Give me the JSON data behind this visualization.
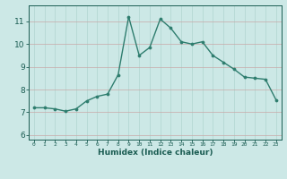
{
  "x": [
    0,
    1,
    2,
    3,
    4,
    5,
    6,
    7,
    8,
    9,
    10,
    11,
    12,
    13,
    14,
    15,
    16,
    17,
    18,
    19,
    20,
    21,
    22,
    23
  ],
  "y": [
    7.2,
    7.2,
    7.15,
    7.05,
    7.15,
    7.5,
    7.7,
    7.8,
    8.65,
    11.2,
    9.5,
    9.85,
    11.1,
    10.7,
    10.1,
    10.0,
    10.1,
    9.5,
    9.2,
    8.9,
    8.55,
    8.5,
    8.45,
    7.55
  ],
  "line_color": "#2e7d6e",
  "marker_color": "#2e7d6e",
  "bg_color": "#cce8e6",
  "grid_color_major": "#b0d4d0",
  "grid_color_minor": "#c8e2e0",
  "tick_color": "#1a5c52",
  "xlabel": "Humidex (Indice chaleur)",
  "ylim": [
    5.8,
    11.7
  ],
  "yticks": [
    6,
    7,
    8,
    9,
    10,
    11
  ],
  "xlim": [
    -0.5,
    23.5
  ],
  "xticks": [
    0,
    1,
    2,
    3,
    4,
    5,
    6,
    7,
    8,
    9,
    10,
    11,
    12,
    13,
    14,
    15,
    16,
    17,
    18,
    19,
    20,
    21,
    22,
    23
  ],
  "xtick_labels": [
    "0",
    "1",
    "2",
    "3",
    "4",
    "5",
    "6",
    "7",
    "8",
    "9",
    "10",
    "11",
    "12",
    "13",
    "14",
    "15",
    "16",
    "17",
    "18",
    "19",
    "20",
    "21",
    "22",
    "23"
  ]
}
